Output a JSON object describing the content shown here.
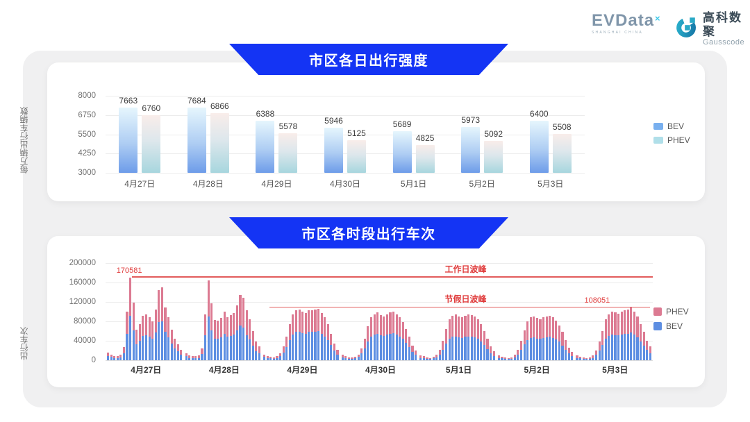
{
  "header": {
    "evdata": {
      "name": "EVData",
      "sup": "×",
      "tagline": "SHANGHAI CHINA"
    },
    "gausscode": {
      "cn": "高科数聚",
      "en": "Gausscode"
    }
  },
  "colors": {
    "banner_blue": "#1434F4",
    "annotation_red": "#E03C3C",
    "bev_gradient_top": "#E6F6FD",
    "bev_gradient_bottom": "#6D9CE9",
    "phev_gradient_top": "#F9EDEA",
    "phev_gradient_bottom": "#A7D6DE",
    "stack_bev_blue": "#5D8EE2",
    "stack_phev_pink": "#DC7A92",
    "panel_gray": "#F0F0F1"
  },
  "chart_data": [
    {
      "type": "bar",
      "title": "市区各日出行强度",
      "ylabel": "每万辆出行车辆数",
      "ylim": [
        3000,
        8000
      ],
      "yticks": [
        8000,
        6750,
        5500,
        4250,
        3000
      ],
      "grid": true,
      "legend_position": "right",
      "legend": [
        "BEV",
        "PHEV"
      ],
      "categories": [
        "4月27日",
        "4月28日",
        "4月29日",
        "4月30日",
        "5月1日",
        "5月2日",
        "5月3日"
      ],
      "series": [
        {
          "name": "BEV",
          "values": [
            7663,
            7684,
            6388,
            5946,
            5689,
            5973,
            6400
          ]
        },
        {
          "name": "PHEV",
          "values": [
            6760,
            6866,
            5578,
            5125,
            4825,
            5092,
            5508
          ]
        }
      ]
    },
    {
      "type": "bar",
      "stacked": true,
      "title": "市区各时段出行车次",
      "ylabel": "出行车次",
      "ylim": [
        0,
        200000
      ],
      "yticks": [
        200000,
        160000,
        120000,
        80000,
        40000,
        0
      ],
      "grid": true,
      "legend_position": "right",
      "legend": [
        "PHEV",
        "BEV"
      ],
      "categories": [
        "4月27日",
        "4月28日",
        "4月29日",
        "4月30日",
        "5月1日",
        "5月2日",
        "5月3日"
      ],
      "hours_per_day": 24,
      "annotations": [
        {
          "label": "工作日波峰",
          "value": 170581,
          "value_label": "170581"
        },
        {
          "label": "节假日波峰",
          "value": 108051,
          "value_label": "108051"
        }
      ],
      "series": [
        {
          "name": "BEV",
          "days": [
            [
              9000,
              6500,
              5000,
              4500,
              6000,
              14000,
              55000,
              91000,
              62000,
              33000,
              40000,
              50000,
              52000,
              48000,
              44000,
              57000,
              78000,
              80000,
              58000,
              47000,
              34000,
              24000,
              18000,
              12000
            ],
            [
              8000,
              5000,
              4000,
              4000,
              5000,
              13000,
              52000,
              90000,
              62000,
              45000,
              44000,
              47000,
              54000,
              48000,
              50000,
              53000,
              62000,
              71000,
              67000,
              52000,
              43000,
              30000,
              19000,
              14000
            ],
            [
              7000,
              5000,
              4000,
              3000,
              4000,
              8000,
              16000,
              27000,
              42000,
              53000,
              58000,
              59000,
              56000,
              54000,
              58000,
              58000,
              59000,
              60000,
              54000,
              49000,
              42000,
              31000,
              20000,
              12000
            ],
            [
              6000,
              4000,
              3000,
              3000,
              4000,
              7000,
              14000,
              25000,
              39000,
              49000,
              53000,
              55000,
              52000,
              50000,
              53000,
              55000,
              56000,
              53000,
              49000,
              44000,
              36000,
              27000,
              17000,
              11000
            ],
            [
              5000,
              4000,
              3000,
              3000,
              4000,
              6000,
              12000,
              21000,
              34000,
              44000,
              48000,
              49000,
              47000,
              46000,
              48000,
              49000,
              48000,
              47000,
              44000,
              39000,
              31000,
              23000,
              15000,
              9000
            ],
            [
              5000,
              4000,
              3000,
              3000,
              3000,
              6000,
              12000,
              21000,
              33000,
              42000,
              46000,
              47000,
              45000,
              44000,
              46000,
              47000,
              48000,
              46000,
              43000,
              38000,
              30000,
              22000,
              14000,
              9000
            ],
            [
              5000,
              4000,
              3000,
              3000,
              3000,
              5000,
              11000,
              20000,
              32000,
              45000,
              50000,
              53000,
              52000,
              51000,
              53000,
              54000,
              55000,
              57000,
              53000,
              47000,
              39000,
              30000,
              21000,
              15000
            ]
          ]
        },
        {
          "name": "PHEV",
          "days": [
            [
              7000,
              5500,
              4000,
              3500,
              5000,
              13000,
              45000,
              79581,
              57000,
              30000,
              35000,
              42000,
              43000,
              40000,
              36000,
              48000,
              67000,
              70000,
              50000,
              41000,
              29000,
              21000,
              15000,
              10000
            ],
            [
              6000,
              5000,
              4000,
              4000,
              5000,
              11000,
              43000,
              74000,
              55000,
              38000,
              38000,
              40000,
              46000,
              40000,
              43000,
              44000,
              51000,
              63000,
              61000,
              51000,
              42000,
              30000,
              19000,
              14000
            ],
            [
              5000,
              4000,
              3000,
              3000,
              4000,
              6000,
              12000,
              21000,
              33000,
              42000,
              45000,
              46000,
              44000,
              43000,
              45000,
              45000,
              46000,
              46000,
              43000,
              39000,
              33000,
              24000,
              15000,
              10000
            ],
            [
              5000,
              4000,
              3000,
              3000,
              3000,
              5000,
              11000,
              20000,
              31000,
              39000,
              42000,
              43000,
              41000,
              40000,
              42000,
              43000,
              44000,
              42000,
              39000,
              34000,
              29000,
              21000,
              13000,
              9000
            ],
            [
              5000,
              4000,
              3000,
              2000,
              3000,
              5000,
              10000,
              19000,
              31000,
              41000,
              44000,
              46000,
              43000,
              42000,
              44000,
              46000,
              45000,
              43000,
              41000,
              36000,
              29000,
              22000,
              13000,
              9000
            ],
            [
              5000,
              3000,
              3000,
              2000,
              3000,
              5000,
              10000,
              19000,
              29000,
              38000,
              42000,
              43000,
              42000,
              41000,
              42000,
              43000,
              44000,
              42000,
              39000,
              34000,
              28000,
              20000,
              12000,
              8000
            ],
            [
              5000,
              3000,
              3000,
              2000,
              3000,
              5000,
              9000,
              18000,
              28000,
              40000,
              45000,
              47000,
              46000,
              45000,
              47000,
              49000,
              50000,
              51051,
              47000,
              43000,
              36000,
              28000,
              19000,
              13000
            ]
          ]
        }
      ]
    }
  ]
}
